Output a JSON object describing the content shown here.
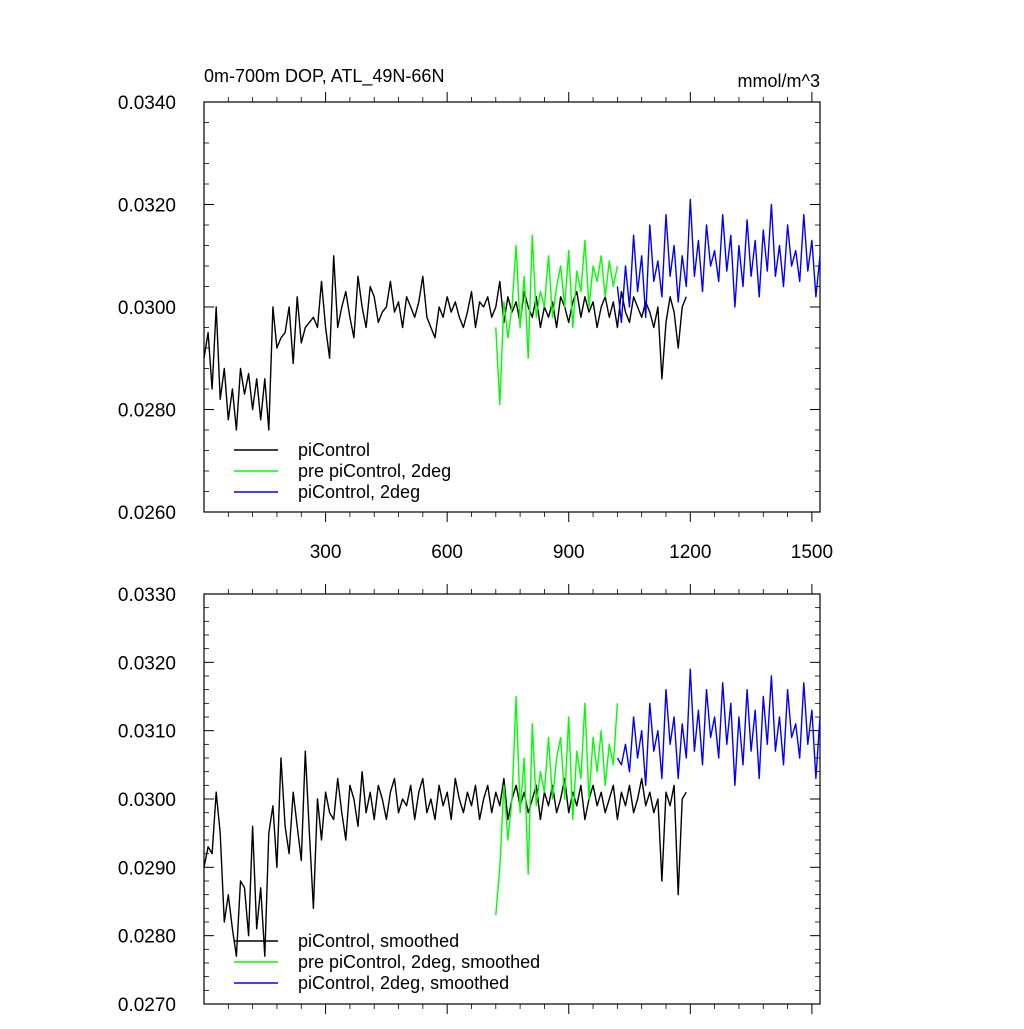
{
  "chart_data": [
    {
      "type": "line",
      "title": "0m-700m DOP, ATL_49N-66N",
      "units": "mmol/m^3",
      "xlim": [
        0,
        1520
      ],
      "ylim": [
        0.026,
        0.034
      ],
      "xticks": [
        300,
        600,
        900,
        1200,
        1500
      ],
      "xtick_labels": [
        "300",
        "600",
        "900",
        "1200",
        "1500"
      ],
      "yticks": [
        0.026,
        0.028,
        0.03,
        0.032,
        0.034
      ],
      "ytick_labels": [
        "0.0260",
        "0.0280",
        "0.0300",
        "0.0320",
        "0.0340"
      ],
      "legend": [
        "piControl",
        "pre piControl, 2deg",
        "piControl, 2deg"
      ],
      "series": [
        {
          "name": "piControl",
          "color": "#000000",
          "x_start": 0,
          "x_step": 10,
          "values": [
            0.029,
            0.0295,
            0.0284,
            0.03,
            0.0282,
            0.0288,
            0.0278,
            0.0284,
            0.0276,
            0.0288,
            0.0283,
            0.0287,
            0.028,
            0.0286,
            0.0278,
            0.0286,
            0.0276,
            0.03,
            0.0292,
            0.0294,
            0.0295,
            0.03,
            0.0289,
            0.0302,
            0.0293,
            0.0296,
            0.0297,
            0.0298,
            0.0296,
            0.0305,
            0.0296,
            0.029,
            0.031,
            0.0296,
            0.03,
            0.0303,
            0.0298,
            0.0294,
            0.0306,
            0.03,
            0.0296,
            0.0304,
            0.0302,
            0.0297,
            0.0299,
            0.03,
            0.0305,
            0.0299,
            0.0301,
            0.0296,
            0.0302,
            0.03,
            0.0298,
            0.0301,
            0.0306,
            0.0298,
            0.0296,
            0.0294,
            0.03,
            0.0298,
            0.0302,
            0.0299,
            0.0301,
            0.0298,
            0.0296,
            0.0299,
            0.0303,
            0.0296,
            0.0301,
            0.03,
            0.0302,
            0.0298,
            0.03,
            0.0305,
            0.0297,
            0.0302,
            0.0299,
            0.0301,
            0.0297,
            0.0303,
            0.03,
            0.0298,
            0.0302,
            0.0296,
            0.03,
            0.0298,
            0.0301,
            0.0296,
            0.0302,
            0.03,
            0.0297,
            0.0301,
            0.0303,
            0.0298,
            0.0302,
            0.0299,
            0.0301,
            0.0296,
            0.03,
            0.0302,
            0.0298,
            0.0301,
            0.0296,
            0.0303,
            0.0299,
            0.0297,
            0.0302,
            0.03,
            0.0298,
            0.0301,
            0.0299,
            0.0296,
            0.03,
            0.0286,
            0.0297,
            0.0302,
            0.0299,
            0.0292,
            0.03,
            0.0302
          ]
        },
        {
          "name": "pre piControl, 2deg",
          "color": "#00ff00",
          "x_start": 720,
          "x_step": 10,
          "values": [
            0.0296,
            0.0281,
            0.0301,
            0.0294,
            0.03,
            0.0312,
            0.0296,
            0.0306,
            0.029,
            0.0314,
            0.0298,
            0.0303,
            0.03,
            0.031,
            0.0298,
            0.0304,
            0.0308,
            0.03,
            0.0311,
            0.0296,
            0.0307,
            0.0303,
            0.0313,
            0.03,
            0.0308,
            0.0305,
            0.031,
            0.0302,
            0.0309,
            0.0304,
            0.0308
          ]
        },
        {
          "name": "piControl, 2deg",
          "color": "#0000ff",
          "x_start": 1020,
          "x_step": 10,
          "values": [
            0.0304,
            0.0297,
            0.0308,
            0.03,
            0.0314,
            0.0303,
            0.031,
            0.0298,
            0.0316,
            0.0305,
            0.0309,
            0.0302,
            0.0318,
            0.0306,
            0.0312,
            0.0301,
            0.031,
            0.0304,
            0.0321,
            0.0306,
            0.0313,
            0.0303,
            0.0316,
            0.0308,
            0.0311,
            0.0305,
            0.0318,
            0.0307,
            0.0314,
            0.03,
            0.0312,
            0.0304,
            0.0317,
            0.0306,
            0.0313,
            0.0302,
            0.0315,
            0.0307,
            0.032,
            0.0306,
            0.0312,
            0.0304,
            0.0316,
            0.0308,
            0.0311,
            0.0305,
            0.0318,
            0.0307,
            0.0313,
            0.0302,
            0.031
          ]
        }
      ]
    },
    {
      "type": "line",
      "title": "",
      "xlim": [
        0,
        1520
      ],
      "ylim": [
        0.027,
        0.033
      ],
      "xticks": [
        300,
        600,
        900,
        1200,
        1500
      ],
      "xtick_labels": [],
      "yticks": [
        0.027,
        0.028,
        0.029,
        0.03,
        0.031,
        0.032,
        0.033
      ],
      "ytick_labels": [
        "0.0270",
        "0.0280",
        "0.0290",
        "0.0300",
        "0.0310",
        "0.0320",
        "0.0330"
      ],
      "legend": [
        "piControl, smoothed",
        "pre piControl, 2deg, smoothed",
        "piControl, 2deg, smoothed"
      ],
      "series": [
        {
          "name": "piControl, smoothed",
          "color": "#000000",
          "x_start": 0,
          "x_step": 10,
          "values": [
            0.029,
            0.0293,
            0.0292,
            0.0301,
            0.0295,
            0.0282,
            0.0286,
            0.0281,
            0.0277,
            0.0288,
            0.0287,
            0.028,
            0.0296,
            0.0281,
            0.0287,
            0.0277,
            0.0295,
            0.0299,
            0.029,
            0.0306,
            0.0296,
            0.0292,
            0.0301,
            0.0296,
            0.0291,
            0.0307,
            0.0295,
            0.0284,
            0.03,
            0.0294,
            0.0301,
            0.0298,
            0.0297,
            0.0303,
            0.0298,
            0.0294,
            0.0302,
            0.03,
            0.0296,
            0.0304,
            0.0298,
            0.0301,
            0.0297,
            0.0302,
            0.03,
            0.0297,
            0.0301,
            0.0303,
            0.0298,
            0.03,
            0.0299,
            0.0302,
            0.0297,
            0.0301,
            0.0303,
            0.0298,
            0.03,
            0.0297,
            0.0302,
            0.0299,
            0.0301,
            0.0297,
            0.0303,
            0.03,
            0.0298,
            0.0301,
            0.0299,
            0.0302,
            0.0297,
            0.03,
            0.0302,
            0.0298,
            0.0301,
            0.0299,
            0.0303,
            0.0297,
            0.03,
            0.0302,
            0.0299,
            0.0301,
            0.0298,
            0.03,
            0.0302,
            0.0297,
            0.0301,
            0.0299,
            0.0302,
            0.0298,
            0.03,
            0.0303,
            0.0298,
            0.0301,
            0.0299,
            0.0302,
            0.0297,
            0.03,
            0.0302,
            0.0299,
            0.0301,
            0.0298,
            0.03,
            0.0302,
            0.0297,
            0.0301,
            0.0299,
            0.0302,
            0.0298,
            0.03,
            0.0303,
            0.0299,
            0.0301,
            0.0298,
            0.03,
            0.0288,
            0.0301,
            0.0299,
            0.0302,
            0.0286,
            0.03,
            0.0301
          ]
        },
        {
          "name": "pre piControl, 2deg, smoothed",
          "color": "#00ff00",
          "x_start": 720,
          "x_step": 10,
          "values": [
            0.0283,
            0.029,
            0.0302,
            0.0294,
            0.03,
            0.0315,
            0.0298,
            0.0306,
            0.0289,
            0.0311,
            0.0299,
            0.0304,
            0.0301,
            0.0309,
            0.03,
            0.0306,
            0.0309,
            0.03,
            0.0312,
            0.0297,
            0.0307,
            0.0303,
            0.0314,
            0.03,
            0.0309,
            0.0304,
            0.031,
            0.0302,
            0.0308,
            0.0305,
            0.0314
          ]
        },
        {
          "name": "piControl, 2deg, smoothed",
          "color": "#0000ff",
          "x_start": 1020,
          "x_step": 10,
          "values": [
            0.0306,
            0.0305,
            0.0308,
            0.0304,
            0.0312,
            0.0306,
            0.031,
            0.0302,
            0.0314,
            0.0307,
            0.031,
            0.0303,
            0.0316,
            0.0308,
            0.0312,
            0.0303,
            0.0311,
            0.0306,
            0.0319,
            0.0307,
            0.0313,
            0.0305,
            0.0316,
            0.0309,
            0.0312,
            0.0306,
            0.0317,
            0.0308,
            0.0314,
            0.0302,
            0.0312,
            0.0305,
            0.0316,
            0.0307,
            0.0313,
            0.0303,
            0.0315,
            0.0308,
            0.0318,
            0.0307,
            0.0312,
            0.0305,
            0.0316,
            0.0309,
            0.0311,
            0.0306,
            0.0317,
            0.0308,
            0.0313,
            0.0303,
            0.0312
          ]
        }
      ]
    }
  ]
}
